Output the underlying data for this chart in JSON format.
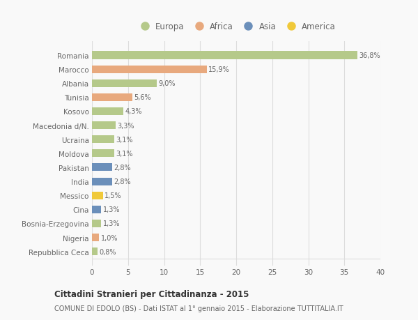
{
  "countries": [
    "Romania",
    "Marocco",
    "Albania",
    "Tunisia",
    "Kosovo",
    "Macedonia d/N.",
    "Ucraina",
    "Moldova",
    "Pakistan",
    "India",
    "Messico",
    "Cina",
    "Bosnia-Erzegovina",
    "Nigeria",
    "Repubblica Ceca"
  ],
  "values": [
    36.8,
    15.9,
    9.0,
    5.6,
    4.3,
    3.3,
    3.1,
    3.1,
    2.8,
    2.8,
    1.5,
    1.3,
    1.3,
    1.0,
    0.8
  ],
  "labels": [
    "36,8%",
    "15,9%",
    "9,0%",
    "5,6%",
    "4,3%",
    "3,3%",
    "3,1%",
    "3,1%",
    "2,8%",
    "2,8%",
    "1,5%",
    "1,3%",
    "1,3%",
    "1,0%",
    "0,8%"
  ],
  "colors": [
    "#b5c98a",
    "#e8a97e",
    "#b5c98a",
    "#e8a97e",
    "#b5c98a",
    "#b5c98a",
    "#b5c98a",
    "#b5c98a",
    "#6b8fba",
    "#6b8fba",
    "#f0c93a",
    "#6b8fba",
    "#b5c98a",
    "#e8a97e",
    "#b5c98a"
  ],
  "legend_labels": [
    "Europa",
    "Africa",
    "Asia",
    "America"
  ],
  "legend_colors": [
    "#b5c98a",
    "#e8a97e",
    "#6b8fba",
    "#f0c93a"
  ],
  "xlim": [
    0,
    40
  ],
  "xticks": [
    0,
    5,
    10,
    15,
    20,
    25,
    30,
    35,
    40
  ],
  "title": "Cittadini Stranieri per Cittadinanza - 2015",
  "subtitle": "COMUNE DI EDOLO (BS) - Dati ISTAT al 1° gennaio 2015 - Elaborazione TUTTITALIA.IT",
  "background_color": "#f9f9f9",
  "bar_height": 0.55,
  "grid_color": "#dddddd",
  "text_color": "#666666"
}
